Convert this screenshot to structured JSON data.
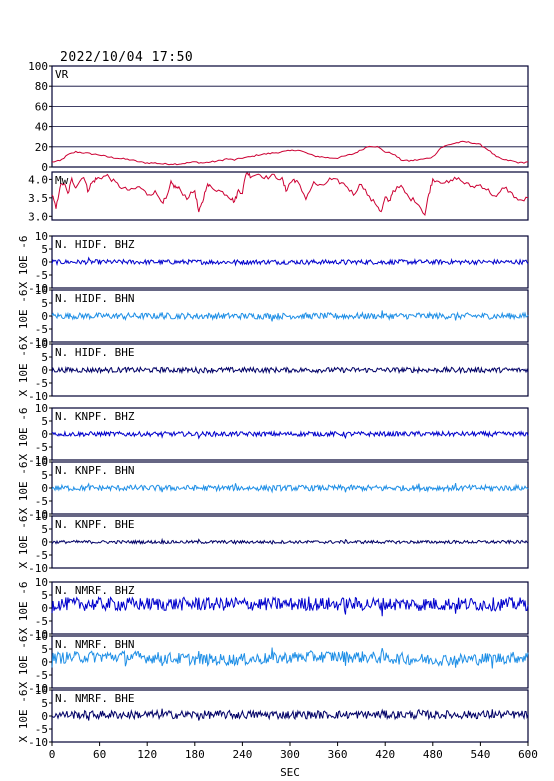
{
  "timestamp": "2022/10/04  17:50",
  "colors": {
    "background": "#ffffff",
    "frame": "#000033",
    "vr": "#cc0033",
    "mw": "#cc0033",
    "bhz": "#0000cc",
    "bhn": "#1f8fe6",
    "bhe": "#000066"
  },
  "chart_data": {
    "type": "line",
    "xlabel": "SEC",
    "xlim": [
      0,
      600
    ],
    "xticks": [
      0,
      60,
      120,
      180,
      240,
      300,
      360,
      420,
      480,
      540,
      600
    ],
    "panels": [
      {
        "name": "VR",
        "ylim": [
          0,
          100
        ],
        "yticks": [
          0,
          20,
          40,
          60,
          80,
          100
        ],
        "grid": true,
        "color": "vr",
        "series": {
          "x": [
            0,
            10,
            20,
            30,
            40,
            50,
            60,
            70,
            80,
            90,
            100,
            110,
            120,
            130,
            140,
            150,
            160,
            170,
            180,
            190,
            200,
            210,
            220,
            230,
            240,
            250,
            260,
            270,
            280,
            290,
            300,
            310,
            320,
            330,
            340,
            350,
            360,
            370,
            380,
            390,
            400,
            410,
            420,
            430,
            440,
            450,
            460,
            470,
            480,
            490,
            500,
            510,
            520,
            530,
            540,
            550,
            560,
            570,
            580,
            590,
            600
          ],
          "y": [
            5,
            6,
            12,
            15,
            14,
            13,
            12,
            10,
            9,
            8,
            7,
            5,
            4,
            4,
            3,
            3,
            3,
            4,
            5,
            4,
            5,
            6,
            8,
            7,
            9,
            10,
            12,
            13,
            14,
            15,
            16,
            17,
            14,
            11,
            10,
            9,
            9,
            11,
            13,
            17,
            21,
            20,
            15,
            13,
            7,
            6,
            7,
            8,
            10,
            19,
            22,
            24,
            25,
            24,
            22,
            17,
            10,
            7,
            6,
            4,
            5
          ]
        }
      },
      {
        "name": "Mw",
        "ylim": [
          2.9,
          4.2
        ],
        "yticks": [
          3.0,
          3.5,
          4.0
        ],
        "grid": false,
        "color": "mw",
        "series": {
          "x": [
            0,
            5,
            10,
            15,
            20,
            25,
            30,
            40,
            45,
            50,
            55,
            60,
            70,
            80,
            90,
            100,
            110,
            120,
            130,
            140,
            145,
            150,
            155,
            160,
            170,
            180,
            185,
            190,
            195,
            200,
            210,
            220,
            225,
            230,
            235,
            240,
            245,
            250,
            260,
            270,
            280,
            290,
            295,
            300,
            305,
            310,
            320,
            330,
            340,
            350,
            360,
            370,
            380,
            390,
            400,
            410,
            415,
            420,
            425,
            430,
            440,
            450,
            460,
            470,
            475,
            480,
            490,
            500,
            510,
            520,
            530,
            540,
            550,
            560,
            570,
            580,
            590,
            600
          ],
          "y": [
            3.6,
            3.2,
            3.8,
            3.9,
            3.6,
            4.0,
            3.8,
            4.1,
            3.7,
            3.9,
            4.0,
            4.05,
            4.1,
            3.9,
            3.75,
            3.7,
            3.8,
            3.6,
            3.65,
            3.4,
            3.5,
            3.9,
            3.8,
            3.75,
            3.5,
            3.7,
            3.1,
            3.4,
            3.85,
            3.8,
            3.7,
            3.6,
            3.5,
            3.4,
            3.7,
            3.65,
            4.2,
            4.1,
            4.15,
            4.05,
            4.1,
            4.0,
            3.7,
            3.9,
            4.0,
            3.9,
            3.5,
            3.9,
            3.8,
            4.0,
            3.95,
            3.85,
            3.6,
            3.9,
            3.5,
            3.3,
            3.1,
            3.5,
            3.4,
            3.7,
            3.8,
            3.5,
            3.4,
            3.05,
            3.6,
            4.0,
            3.95,
            3.9,
            4.05,
            3.9,
            3.8,
            3.85,
            3.7,
            3.5,
            3.8,
            3.6,
            3.4,
            3.5
          ]
        }
      },
      {
        "name": "N. HIDF. BHZ",
        "ylim": [
          -10,
          10
        ],
        "yticks": [
          -10,
          -5,
          0,
          5,
          10
        ],
        "amp": 0.9,
        "color": "bhz",
        "offset": 0
      },
      {
        "name": "N. HIDF. BHN",
        "ylim": [
          -10,
          10
        ],
        "yticks": [
          -10,
          -5,
          0,
          5,
          10
        ],
        "amp": 1.2,
        "color": "bhn",
        "offset": 0
      },
      {
        "name": "N. HIDF. BHE",
        "ylim": [
          -10,
          10
        ],
        "yticks": [
          -10,
          -5,
          0,
          5,
          10
        ],
        "amp": 1.0,
        "color": "bhe",
        "offset": 0
      },
      {
        "name": "N. KNPF. BHZ",
        "ylim": [
          -10,
          10
        ],
        "yticks": [
          -10,
          -5,
          0,
          5,
          10
        ],
        "amp": 0.9,
        "color": "bhz",
        "offset": 0
      },
      {
        "name": "N. KNPF. BHN",
        "ylim": [
          -10,
          10
        ],
        "yticks": [
          -10,
          -5,
          0,
          5,
          10
        ],
        "amp": 1.1,
        "color": "bhn",
        "offset": 0
      },
      {
        "name": "N. KNPF. BHE",
        "ylim": [
          -10,
          10
        ],
        "yticks": [
          -10,
          -5,
          0,
          5,
          10
        ],
        "amp": 0.6,
        "color": "bhe",
        "offset": 0
      },
      {
        "name": "N. NMRF. BHZ",
        "ylim": [
          -10,
          10
        ],
        "yticks": [
          -10,
          -5,
          0,
          5,
          10
        ],
        "amp": 2.6,
        "color": "bhz",
        "offset": 1.5
      },
      {
        "name": "N. NMRF. BHN",
        "ylim": [
          -10,
          10
        ],
        "yticks": [
          -10,
          -5,
          0,
          5,
          10
        ],
        "amp": 2.3,
        "color": "bhn",
        "offset": 1.5
      },
      {
        "name": "N. NMRF. BHE",
        "ylim": [
          -10,
          10
        ],
        "yticks": [
          -10,
          -5,
          0,
          5,
          10
        ],
        "amp": 1.6,
        "color": "bhe",
        "offset": 0.5
      }
    ],
    "ylabel_seis": "X 10E -6"
  }
}
